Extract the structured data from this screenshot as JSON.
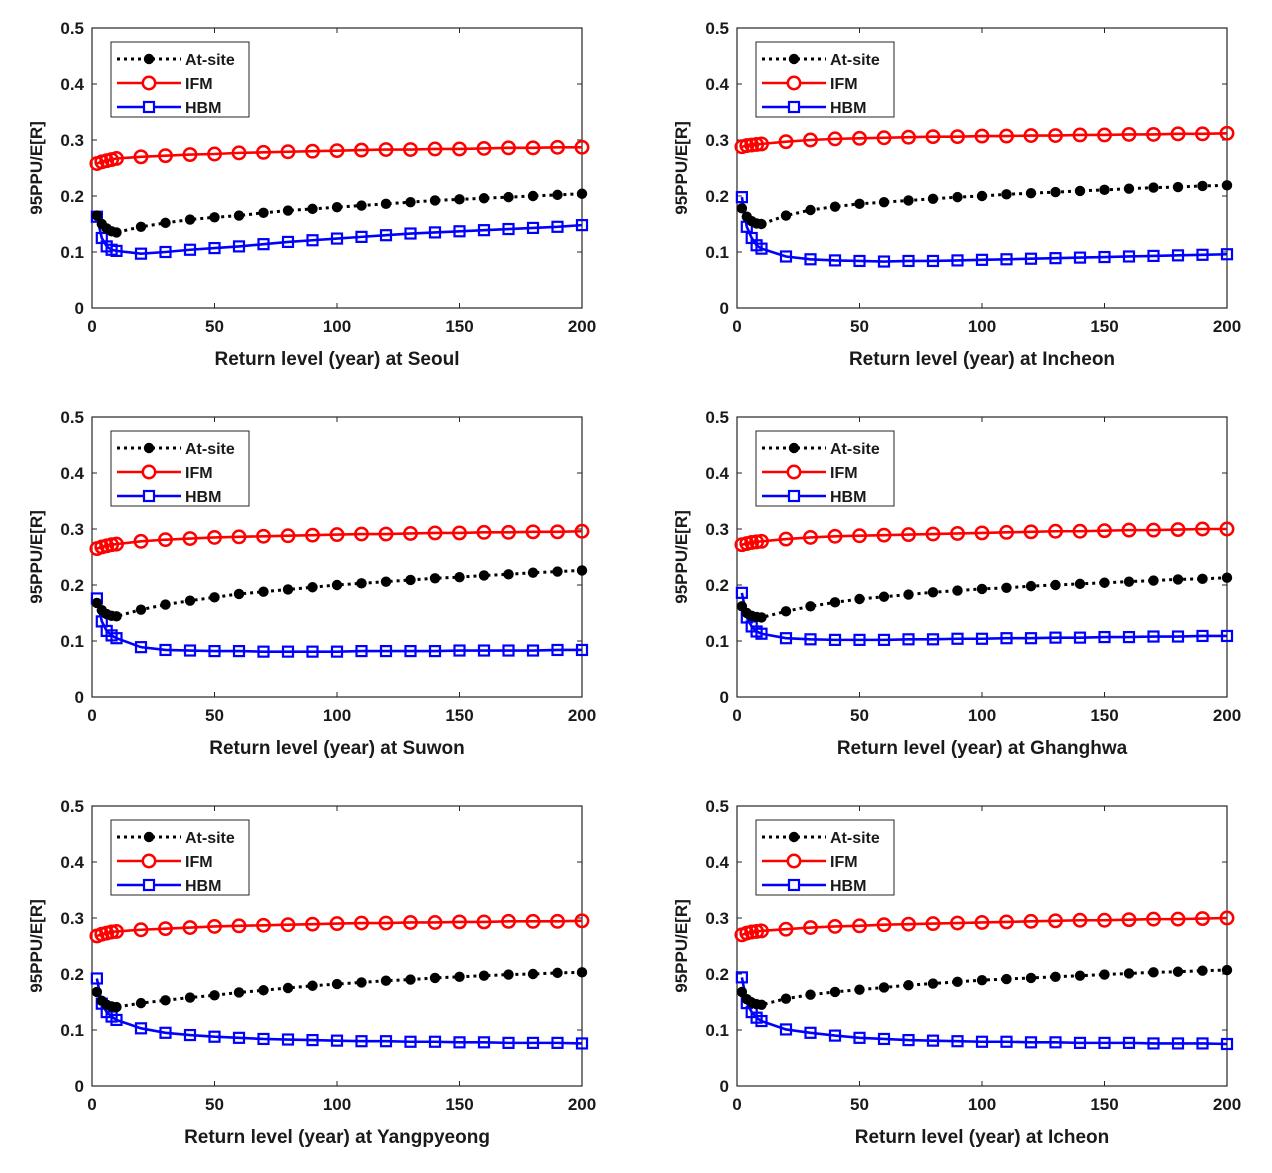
{
  "chart_data": [
    {
      "type": "line",
      "ylabel": "95PPU/E[R]",
      "xlabel_prefix": "Return level (year) at",
      "station": "Seoul",
      "xlim": [
        0,
        200
      ],
      "ylim": [
        0,
        0.5
      ],
      "xticks": [
        0,
        50,
        100,
        150,
        200
      ],
      "yticks": [
        0,
        0.1,
        0.2,
        0.3,
        0.4,
        0.5
      ],
      "xtick_labels": [
        "0",
        "50",
        "100",
        "150",
        "200"
      ],
      "ytick_labels": [
        "0",
        "0.1",
        "0.2",
        "0.3",
        "0.4",
        "0.5"
      ],
      "legend_position": "top-left",
      "x": [
        2,
        4,
        6,
        8,
        10,
        20,
        30,
        40,
        50,
        60,
        70,
        80,
        90,
        100,
        110,
        120,
        130,
        140,
        150,
        160,
        170,
        180,
        190,
        200
      ],
      "series": [
        {
          "name": "At-site",
          "values": [
            0.165,
            0.15,
            0.142,
            0.137,
            0.135,
            0.145,
            0.152,
            0.158,
            0.162,
            0.165,
            0.17,
            0.174,
            0.177,
            0.18,
            0.183,
            0.186,
            0.189,
            0.192,
            0.194,
            0.196,
            0.198,
            0.2,
            0.202,
            0.204
          ]
        },
        {
          "name": "IFM",
          "values": [
            0.258,
            0.261,
            0.263,
            0.265,
            0.267,
            0.27,
            0.272,
            0.274,
            0.275,
            0.277,
            0.278,
            0.279,
            0.28,
            0.281,
            0.282,
            0.283,
            0.283,
            0.284,
            0.284,
            0.285,
            0.286,
            0.286,
            0.287,
            0.287
          ]
        },
        {
          "name": "HBM",
          "values": [
            0.163,
            0.125,
            0.11,
            0.104,
            0.102,
            0.097,
            0.1,
            0.104,
            0.107,
            0.11,
            0.114,
            0.118,
            0.121,
            0.124,
            0.127,
            0.13,
            0.133,
            0.135,
            0.137,
            0.139,
            0.141,
            0.143,
            0.145,
            0.148
          ]
        }
      ]
    },
    {
      "type": "line",
      "ylabel": "95PPU/E[R]",
      "xlabel_prefix": "Return level (year) at",
      "station": "Incheon",
      "xlim": [
        0,
        200
      ],
      "ylim": [
        0,
        0.5
      ],
      "xticks": [
        0,
        50,
        100,
        150,
        200
      ],
      "yticks": [
        0,
        0.1,
        0.2,
        0.3,
        0.4,
        0.5
      ],
      "xtick_labels": [
        "0",
        "50",
        "100",
        "150",
        "200"
      ],
      "ytick_labels": [
        "0",
        "0.1",
        "0.2",
        "0.3",
        "0.4",
        "0.5"
      ],
      "legend_position": "top-left",
      "x": [
        2,
        4,
        6,
        8,
        10,
        20,
        30,
        40,
        50,
        60,
        70,
        80,
        90,
        100,
        110,
        120,
        130,
        140,
        150,
        160,
        170,
        180,
        190,
        200
      ],
      "series": [
        {
          "name": "At-site",
          "values": [
            0.178,
            0.163,
            0.155,
            0.151,
            0.15,
            0.165,
            0.175,
            0.181,
            0.186,
            0.189,
            0.192,
            0.195,
            0.198,
            0.2,
            0.203,
            0.205,
            0.207,
            0.209,
            0.211,
            0.213,
            0.215,
            0.216,
            0.218,
            0.219
          ]
        },
        {
          "name": "IFM",
          "values": [
            0.288,
            0.29,
            0.291,
            0.292,
            0.293,
            0.297,
            0.3,
            0.302,
            0.303,
            0.304,
            0.305,
            0.306,
            0.306,
            0.307,
            0.307,
            0.308,
            0.308,
            0.309,
            0.309,
            0.31,
            0.31,
            0.311,
            0.311,
            0.312
          ]
        },
        {
          "name": "HBM",
          "values": [
            0.198,
            0.145,
            0.125,
            0.112,
            0.106,
            0.092,
            0.087,
            0.085,
            0.084,
            0.083,
            0.084,
            0.084,
            0.085,
            0.086,
            0.087,
            0.088,
            0.089,
            0.09,
            0.091,
            0.092,
            0.093,
            0.094,
            0.095,
            0.096
          ]
        }
      ]
    },
    {
      "type": "line",
      "ylabel": "95PPU/E[R]",
      "xlabel_prefix": "Return level (year) at",
      "station": "Suwon",
      "xlim": [
        0,
        200
      ],
      "ylim": [
        0,
        0.5
      ],
      "xticks": [
        0,
        50,
        100,
        150,
        200
      ],
      "yticks": [
        0,
        0.1,
        0.2,
        0.3,
        0.4,
        0.5
      ],
      "xtick_labels": [
        "0",
        "50",
        "100",
        "150",
        "200"
      ],
      "ytick_labels": [
        "0",
        "0.1",
        "0.2",
        "0.3",
        "0.4",
        "0.5"
      ],
      "legend_position": "top-left",
      "x": [
        2,
        4,
        6,
        8,
        10,
        20,
        30,
        40,
        50,
        60,
        70,
        80,
        90,
        100,
        110,
        120,
        130,
        140,
        150,
        160,
        170,
        180,
        190,
        200
      ],
      "series": [
        {
          "name": "At-site",
          "values": [
            0.168,
            0.155,
            0.148,
            0.145,
            0.144,
            0.156,
            0.165,
            0.172,
            0.178,
            0.184,
            0.188,
            0.192,
            0.196,
            0.2,
            0.203,
            0.206,
            0.209,
            0.212,
            0.214,
            0.217,
            0.219,
            0.222,
            0.224,
            0.226
          ]
        },
        {
          "name": "IFM",
          "values": [
            0.265,
            0.268,
            0.27,
            0.272,
            0.273,
            0.278,
            0.281,
            0.283,
            0.285,
            0.286,
            0.287,
            0.288,
            0.289,
            0.29,
            0.291,
            0.291,
            0.292,
            0.293,
            0.293,
            0.294,
            0.294,
            0.295,
            0.295,
            0.296
          ]
        },
        {
          "name": "HBM",
          "values": [
            0.176,
            0.135,
            0.118,
            0.11,
            0.105,
            0.089,
            0.084,
            0.083,
            0.082,
            0.082,
            0.081,
            0.081,
            0.081,
            0.081,
            0.082,
            0.082,
            0.082,
            0.082,
            0.083,
            0.083,
            0.083,
            0.083,
            0.084,
            0.084
          ]
        }
      ]
    },
    {
      "type": "line",
      "ylabel": "95PPU/E[R]",
      "xlabel_prefix": "Return level (year) at",
      "station": "Ghanghwa",
      "xlim": [
        0,
        200
      ],
      "ylim": [
        0,
        0.5
      ],
      "xticks": [
        0,
        50,
        100,
        150,
        200
      ],
      "yticks": [
        0,
        0.1,
        0.2,
        0.3,
        0.4,
        0.5
      ],
      "xtick_labels": [
        "0",
        "50",
        "100",
        "150",
        "200"
      ],
      "ytick_labels": [
        "0",
        "0.1",
        "0.2",
        "0.3",
        "0.4",
        "0.5"
      ],
      "legend_position": "top-left",
      "x": [
        2,
        4,
        6,
        8,
        10,
        20,
        30,
        40,
        50,
        60,
        70,
        80,
        90,
        100,
        110,
        120,
        130,
        140,
        150,
        160,
        170,
        180,
        190,
        200
      ],
      "series": [
        {
          "name": "At-site",
          "values": [
            0.162,
            0.15,
            0.145,
            0.143,
            0.142,
            0.153,
            0.162,
            0.169,
            0.175,
            0.179,
            0.183,
            0.187,
            0.19,
            0.193,
            0.195,
            0.198,
            0.2,
            0.202,
            0.204,
            0.206,
            0.208,
            0.21,
            0.211,
            0.213
          ]
        },
        {
          "name": "IFM",
          "values": [
            0.272,
            0.274,
            0.276,
            0.277,
            0.278,
            0.282,
            0.285,
            0.287,
            0.288,
            0.289,
            0.29,
            0.291,
            0.292,
            0.293,
            0.294,
            0.295,
            0.296,
            0.296,
            0.297,
            0.298,
            0.298,
            0.299,
            0.3,
            0.3
          ]
        },
        {
          "name": "HBM",
          "values": [
            0.186,
            0.142,
            0.126,
            0.117,
            0.113,
            0.105,
            0.103,
            0.102,
            0.102,
            0.102,
            0.103,
            0.103,
            0.104,
            0.104,
            0.105,
            0.105,
            0.106,
            0.106,
            0.107,
            0.107,
            0.108,
            0.108,
            0.109,
            0.109
          ]
        }
      ]
    },
    {
      "type": "line",
      "ylabel": "95PPU/E[R]",
      "xlabel_prefix": "Return level (year) at",
      "station": "Yangpyeong",
      "xlim": [
        0,
        200
      ],
      "ylim": [
        0,
        0.5
      ],
      "xticks": [
        0,
        50,
        100,
        150,
        200
      ],
      "yticks": [
        0,
        0.1,
        0.2,
        0.3,
        0.4,
        0.5
      ],
      "xtick_labels": [
        "0",
        "50",
        "100",
        "150",
        "200"
      ],
      "ytick_labels": [
        "0",
        "0.1",
        "0.2",
        "0.3",
        "0.4",
        "0.5"
      ],
      "legend_position": "top-left",
      "x": [
        2,
        4,
        6,
        8,
        10,
        20,
        30,
        40,
        50,
        60,
        70,
        80,
        90,
        100,
        110,
        120,
        130,
        140,
        150,
        160,
        170,
        180,
        190,
        200
      ],
      "series": [
        {
          "name": "At-site",
          "values": [
            0.168,
            0.152,
            0.145,
            0.142,
            0.141,
            0.148,
            0.153,
            0.158,
            0.162,
            0.167,
            0.171,
            0.175,
            0.179,
            0.182,
            0.185,
            0.188,
            0.19,
            0.193,
            0.195,
            0.197,
            0.199,
            0.2,
            0.202,
            0.203
          ]
        },
        {
          "name": "IFM",
          "values": [
            0.268,
            0.271,
            0.273,
            0.275,
            0.276,
            0.279,
            0.281,
            0.283,
            0.285,
            0.286,
            0.287,
            0.288,
            0.289,
            0.29,
            0.291,
            0.291,
            0.292,
            0.292,
            0.293,
            0.293,
            0.294,
            0.294,
            0.294,
            0.295
          ]
        },
        {
          "name": "HBM",
          "values": [
            0.192,
            0.147,
            0.132,
            0.124,
            0.118,
            0.103,
            0.095,
            0.091,
            0.088,
            0.086,
            0.084,
            0.083,
            0.082,
            0.081,
            0.08,
            0.08,
            0.079,
            0.079,
            0.078,
            0.078,
            0.077,
            0.077,
            0.077,
            0.076
          ]
        }
      ]
    },
    {
      "type": "line",
      "ylabel": "95PPU/E[R]",
      "xlabel_prefix": "Return level (year) at",
      "station": "Icheon",
      "xlim": [
        0,
        200
      ],
      "ylim": [
        0,
        0.5
      ],
      "xticks": [
        0,
        50,
        100,
        150,
        200
      ],
      "yticks": [
        0,
        0.1,
        0.2,
        0.3,
        0.4,
        0.5
      ],
      "xtick_labels": [
        "0",
        "50",
        "100",
        "150",
        "200"
      ],
      "ytick_labels": [
        "0",
        "0.1",
        "0.2",
        "0.3",
        "0.4",
        "0.5"
      ],
      "legend_position": "top-left",
      "x": [
        2,
        4,
        6,
        8,
        10,
        20,
        30,
        40,
        50,
        60,
        70,
        80,
        90,
        100,
        110,
        120,
        130,
        140,
        150,
        160,
        170,
        180,
        190,
        200
      ],
      "series": [
        {
          "name": "At-site",
          "values": [
            0.168,
            0.155,
            0.149,
            0.146,
            0.145,
            0.156,
            0.163,
            0.168,
            0.172,
            0.176,
            0.18,
            0.183,
            0.186,
            0.189,
            0.191,
            0.193,
            0.195,
            0.197,
            0.199,
            0.201,
            0.203,
            0.204,
            0.206,
            0.207
          ]
        },
        {
          "name": "IFM",
          "values": [
            0.27,
            0.273,
            0.275,
            0.276,
            0.277,
            0.28,
            0.283,
            0.285,
            0.286,
            0.288,
            0.289,
            0.29,
            0.291,
            0.292,
            0.293,
            0.294,
            0.295,
            0.296,
            0.296,
            0.297,
            0.298,
            0.298,
            0.299,
            0.3
          ]
        },
        {
          "name": "HBM",
          "values": [
            0.194,
            0.148,
            0.132,
            0.122,
            0.116,
            0.101,
            0.095,
            0.09,
            0.086,
            0.084,
            0.082,
            0.081,
            0.08,
            0.079,
            0.079,
            0.078,
            0.078,
            0.077,
            0.077,
            0.077,
            0.076,
            0.076,
            0.076,
            0.075
          ]
        }
      ]
    }
  ],
  "colors": {
    "at_site": "#000000",
    "ifm": "#ff0000",
    "hbm": "#0000ff",
    "axis": "#262626",
    "text": "#1a1a1a"
  }
}
